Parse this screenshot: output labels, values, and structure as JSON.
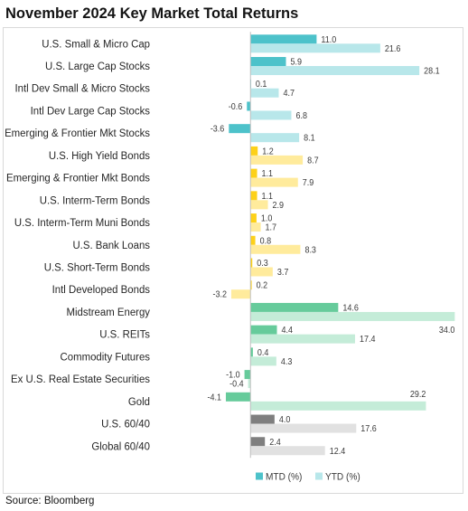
{
  "chart_data": {
    "type": "bar",
    "orientation": "horizontal",
    "title": "November 2024 Key Market Total Returns",
    "xlim": [
      -5,
      35
    ],
    "grid": false,
    "legend_position": "bottom",
    "categories": [
      "U.S. Small & Micro Cap",
      "U.S. Large Cap Stocks",
      "Intl Dev Small & Micro Stocks",
      "Intl Dev Large Cap Stocks",
      "Emerging & Frontier Mkt Stocks",
      "U.S. High Yield Bonds",
      "Emerging & Frontier Mkt Bonds",
      "U.S. Interm-Term Bonds",
      "U.S. Interm-Term Muni Bonds",
      "U.S. Bank Loans",
      "U.S. Short-Term Bonds",
      "Intl Developed Bonds",
      "Midstream Energy",
      "U.S. REITs",
      "Commodity Futures",
      "Ex U.S. Real Estate Securities",
      "Gold",
      "U.S. 60/40",
      "Global 60/40"
    ],
    "series": [
      {
        "name": "MTD (%)",
        "values": [
          11.0,
          5.9,
          0.1,
          -0.6,
          -3.6,
          1.2,
          1.1,
          1.1,
          1.0,
          0.8,
          0.3,
          0.2,
          14.6,
          4.4,
          0.4,
          -1.0,
          -4.1,
          4.0,
          2.4
        ],
        "colors": [
          "#4dc2ca",
          "#4dc2ca",
          "#4dc2ca",
          "#4dc2ca",
          "#4dc2ca",
          "#fdd119",
          "#fdd119",
          "#fdd119",
          "#fdd119",
          "#fdd119",
          "#fdd119",
          "#fdd119",
          "#66cb9b",
          "#66cb9b",
          "#66cb9b",
          "#66cb9b",
          "#66cb9b",
          "#7f7f7f",
          "#7f7f7f"
        ]
      },
      {
        "name": "YTD (%)",
        "values": [
          21.6,
          28.1,
          4.7,
          6.8,
          8.1,
          8.7,
          7.9,
          2.9,
          1.7,
          8.3,
          3.7,
          -3.2,
          34.0,
          17.4,
          4.3,
          -0.4,
          29.2,
          17.6,
          12.4
        ],
        "colors": [
          "#b8e7ea",
          "#b8e7ea",
          "#b8e7ea",
          "#b8e7ea",
          "#b8e7ea",
          "#ffeb9c",
          "#ffeb9c",
          "#ffeb9c",
          "#ffeb9c",
          "#ffeb9c",
          "#ffeb9c",
          "#ffeb9c",
          "#c4ecd8",
          "#c4ecd8",
          "#c4ecd8",
          "#c4ecd8",
          "#c4ecd8",
          "#e1e1e1",
          "#e1e1e1"
        ]
      }
    ]
  },
  "source": "Source: Bloomberg"
}
